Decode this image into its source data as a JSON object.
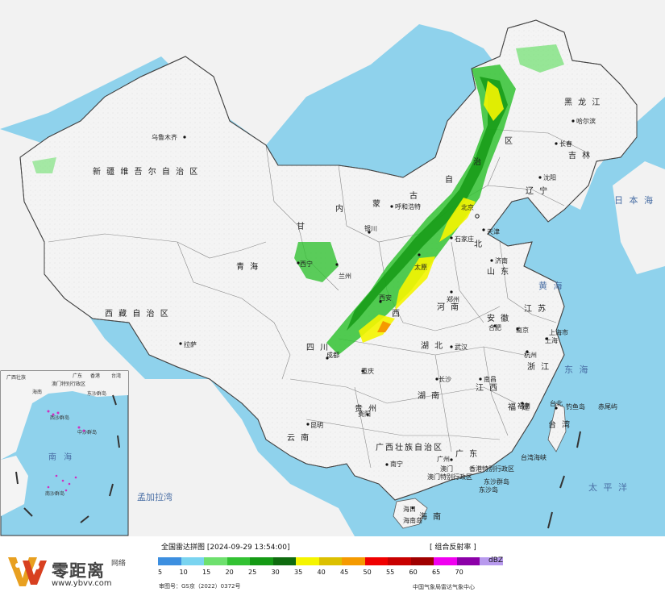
{
  "map": {
    "provinces": [
      {
        "id": "xinjiang",
        "name": "新 疆 维 吾 尔 自 治 区"
      },
      {
        "id": "xizang",
        "name": "西 藏 自 治 区"
      },
      {
        "id": "qinghai",
        "name": "青 海"
      },
      {
        "id": "gansu",
        "name": "甘"
      },
      {
        "id": "neimenggu1",
        "name": "内"
      },
      {
        "id": "neimenggu2",
        "name": "蒙"
      },
      {
        "id": "neimenggu3",
        "name": "古"
      },
      {
        "id": "neimenggu4",
        "name": "自"
      },
      {
        "id": "neimenggu5",
        "name": "治"
      },
      {
        "id": "neimenggu6",
        "name": "区"
      },
      {
        "id": "heilongjiang",
        "name": "黑 龙 江"
      },
      {
        "id": "jilin",
        "name": "吉 林"
      },
      {
        "id": "liaoning",
        "name": "辽 宁"
      },
      {
        "id": "shandong",
        "name": "山 东"
      },
      {
        "id": "henan",
        "name": "河 南"
      },
      {
        "id": "hubei",
        "name": "湖 北"
      },
      {
        "id": "hunan",
        "name": "湖 南"
      },
      {
        "id": "jiangxi",
        "name": "江 西"
      },
      {
        "id": "anhui",
        "name": "安 徽"
      },
      {
        "id": "jiangsu",
        "name": "江 苏"
      },
      {
        "id": "zhejiang",
        "name": "浙 江"
      },
      {
        "id": "fujian",
        "name": "福 建"
      },
      {
        "id": "guangdong",
        "name": "广 东"
      },
      {
        "id": "guangxi",
        "name": "广西壮族自治区"
      },
      {
        "id": "guizhou",
        "name": "贵 州"
      },
      {
        "id": "yunnan",
        "name": "云 南"
      },
      {
        "id": "sichuan",
        "name": "四 川"
      },
      {
        "id": "hebei",
        "name": "北"
      },
      {
        "id": "shanxi",
        "name": "西"
      },
      {
        "id": "taiwan",
        "name": "台 湾"
      },
      {
        "id": "hainan",
        "name": "海 南"
      }
    ],
    "cities": [
      {
        "id": "urumqi",
        "name": "乌鲁木齐"
      },
      {
        "id": "lhasa",
        "name": "拉萨"
      },
      {
        "id": "hohhot",
        "name": "呼和浩特"
      },
      {
        "id": "harbin",
        "name": "哈尔滨"
      },
      {
        "id": "changchun",
        "name": "长春"
      },
      {
        "id": "shenyang",
        "name": "沈阳"
      },
      {
        "id": "beijing",
        "name": "北京"
      },
      {
        "id": "tianjin",
        "name": "天津"
      },
      {
        "id": "shijiazhuang",
        "name": "石家庄"
      },
      {
        "id": "taiyuan",
        "name": "太原"
      },
      {
        "id": "jinan",
        "name": "济南"
      },
      {
        "id": "zhengzhou",
        "name": "郑州"
      },
      {
        "id": "xian",
        "name": "西安"
      },
      {
        "id": "lanzhou",
        "name": "兰州"
      },
      {
        "id": "xining",
        "name": "西宁"
      },
      {
        "id": "yinchuan",
        "name": "银川"
      },
      {
        "id": "chengdu",
        "name": "成都"
      },
      {
        "id": "chongqing",
        "name": "重庆"
      },
      {
        "id": "wuhan",
        "name": "武汉"
      },
      {
        "id": "hefei",
        "name": "合肥"
      },
      {
        "id": "nanjing",
        "name": "南京"
      },
      {
        "id": "shanghai",
        "name": "上海市"
      },
      {
        "id": "shanghai2",
        "name": "上海"
      },
      {
        "id": "hangzhou",
        "name": "杭州"
      },
      {
        "id": "nanchang",
        "name": "南昌"
      },
      {
        "id": "changsha",
        "name": "长沙"
      },
      {
        "id": "fuzhou",
        "name": "福州"
      },
      {
        "id": "taipei",
        "name": "台北"
      },
      {
        "id": "guiyang",
        "name": "贵阳"
      },
      {
        "id": "kunming",
        "name": "昆明"
      },
      {
        "id": "nanning",
        "name": "南宁"
      },
      {
        "id": "guangzhou",
        "name": "广州"
      },
      {
        "id": "hongkong",
        "name": "香港特别行政区"
      },
      {
        "id": "macau",
        "name": "澳门特别行政区"
      },
      {
        "id": "macau2",
        "name": "澳门"
      },
      {
        "id": "haikou",
        "name": "海口"
      },
      {
        "id": "taiwanhaixia",
        "name": "台湾海峡"
      },
      {
        "id": "diaoyu",
        "name": "钓鱼岛"
      },
      {
        "id": "chiwei",
        "name": "赤尾屿"
      },
      {
        "id": "dongsha",
        "name": "东沙群岛"
      },
      {
        "id": "dongsha2",
        "name": "东沙岛"
      },
      {
        "id": "hainandao",
        "name": "海南岛"
      }
    ],
    "seas": [
      {
        "id": "japan",
        "name": "日 本 海"
      },
      {
        "id": "yellow",
        "name": "黄 海"
      },
      {
        "id": "eastchina",
        "name": "东 海"
      },
      {
        "id": "pacific",
        "name": "太 平 洋"
      },
      {
        "id": "bengal",
        "name": "孟加拉湾"
      },
      {
        "id": "southchina",
        "name": "南 海"
      }
    ],
    "inset_labels": [
      "广西壮族",
      "广东",
      "香港",
      "海南",
      "澳门特别行政区",
      "台湾",
      "东沙群岛",
      "中沙群岛",
      "西沙群岛",
      "南沙群岛",
      "南"
    ]
  },
  "legend": {
    "title": "全国雷达拼图 [2024-09-29 13:54:00]",
    "product": "[ 组合反射率 ]",
    "unit": "dBZ",
    "ticks": [
      "5",
      "10",
      "15",
      "20",
      "25",
      "30",
      "35",
      "40",
      "45",
      "50",
      "55",
      "60",
      "65",
      "70"
    ],
    "colors": [
      "#3d8fe0",
      "#7ad4f0",
      "#6ee06e",
      "#33c233",
      "#159a15",
      "#0f6b0f",
      "#f5f500",
      "#dcc000",
      "#f59a00",
      "#f00000",
      "#c80000",
      "#a00000",
      "#f000f0",
      "#8c00a8",
      "#b89aee"
    ],
    "audit": "审图号：GS京（2022）0372号",
    "credit": "中国气象局雷达气象中心"
  },
  "logo": {
    "name": "零距离",
    "sub": "网络",
    "url": "www.ybvv.com"
  }
}
